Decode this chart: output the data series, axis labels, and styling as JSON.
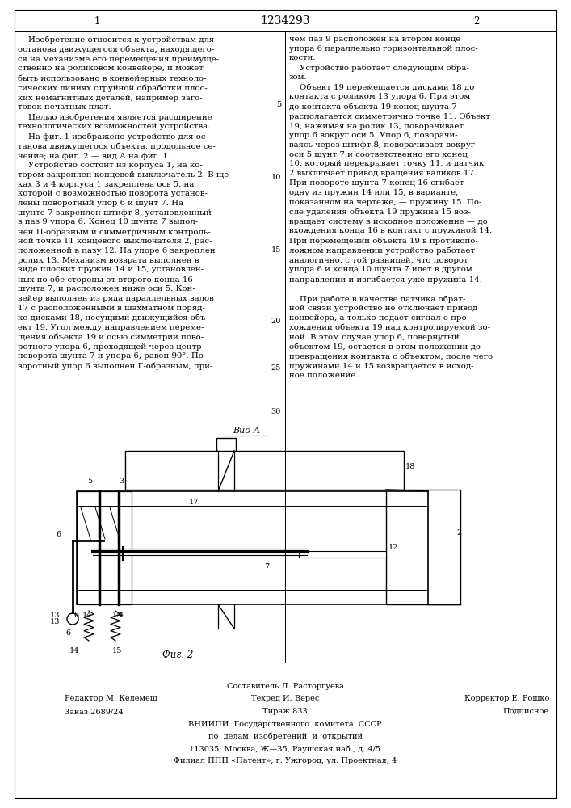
{
  "title": "1234293",
  "col1_header": "1",
  "col2_header": "2",
  "fig_label": "Фиг. 2",
  "view_label": "Вид А",
  "col1_text": "    Изобретение относится к устройствам для\nостанова движущегося объекта, находящего-\nся на механизме его перемещения,преимуще-\nственно на роликовом конвейере, и может\nбыть использовано в конвейерных техноло-\nгических линиях струйной обработки плос-\nких немагнитных деталей, например заго-\nтовок печатных плат.\n    Целью изобретения является расширение\nтехнологических возможностей устройства.\n    На фиг. 1 изображено устройство для ос-\nтанова движущегося объекта, продольное се-\nчение; на фиг. 2 — вид А на фиг. 1.\n    Устройство состоит из корпуса 1, на ко-\nтором закреплен концевой выключатель 2. В ще-\nках 3 и 4 корпуса 1 закреплена ось 5, на\nкоторой с возможностью поворота установ-\nлены поворотный упор 6 и шунт 7. На\nшунте 7 закреплен штифт 8, установленный\nв паз 9 упора 6. Конец 10 шунта 7 выпол-\nнен П-образным и симметричным контроль-\nной точке 11 концевого выключателя 2, рас-\nположенной в пазу 12. На упоре 6 закреплен\nролик 13. Механизм возврата выполнен в\nвиде плоских пружин 14 и 15, установлен-\nных по обе стороны от второго конца 16\nшунта 7, и расположен ниже оси 5. Кон-\nвейер выполнен из ряда параллельных валов\n17 с расположенными в шахматном поряд-\nке дисками 18, несущими движущийся объ-\nект 19. Угол между направлением переме-\nщения объекта 19 и осью симметрии пово-\nротного упора 6, проходящей через центр\nповорота шунта 7 и упора 6, равен 90°. По-\nворотный упор 6 выполнен Г-образным, при-",
  "col2_text": "чем паз 9 расположен на втором конце\nупора 6 параллельно горизонтальной плос-\nкости.\n    Устройство работает следующим обра-\nзом.\n    Объект 19 перемещается дисками 18 до\nконтакта с роликом 13 упора 6. При этом\nдо контакта объекта 19 конец шунта 7\nрасполагается симметрично точке 11. Объект\n19, нажимая на ролик 13, поворачивает\nупор 6 вокруг оси 5. Упор 6, поворачи-\nваясь через штифт 8, поворачивает вокруг\nоси 5 шунт 7 и соответственно его конец\n10, который перекрывает точку 11, и датчик\n2 выключает привод вращения валиков 17.\nПри повороте шунта 7 конец 16 сгибает\nодну из пружин 14 или 15, в варианте,\nпоказанном на чертеже, — пружину 15. По-\nсле удаления объекта 19 пружина 15 воз-\nвращает систему в исходное положение — до\nвхождения конца 16 в контакт с пружиной 14.\nПри перемещении объекта 19 в противопо-\nложном направлении устройство работает\nаналогично, с той разницей, что поворот\nупора 6 и конца 10 шунта 7 идет в другом\nнаправлении и изгибается уже пружина 14.\n\n    При работе в качестве датчика обрат-\nной связи устройство не отключает привод\nконвейера, а только подает сигнал о про-\nхождении объекта 19 над контролируемой зо-\nной. В этом случае упор 6, повернутый\nобъектом 19, остается в этом положении до\nпрекращения контакта с объектом, после чего\nпружинами 14 и 15 возвращается в исход-\nное положение.",
  "line_numbers_vals": [
    "5",
    "10",
    "15",
    "20",
    "25",
    "30"
  ],
  "footer_row0": "Составитель Л. Расторгуева",
  "footer_techred": "Техред И. Верес",
  "footer_left": "Редактор М. Келемеш",
  "footer_right": "Корректор Е. Рошко",
  "footer_left2": "Заказ 2689/24",
  "footer_center2": "Тираж 833",
  "footer_right2": "Подписное",
  "footer_org": "ВНИИПИ  Государственного  комитета  СССР",
  "footer_org2": "по  делам  изобретений  и  открытий",
  "footer_addr": "113035, Москва, Ж—35, Раушская наб., д. 4/5",
  "footer_branch": "Филиал ППП «Патент», г. Ужгород, ул. Проектная, 4",
  "bg_color": "#ffffff",
  "text_color": "#000000"
}
